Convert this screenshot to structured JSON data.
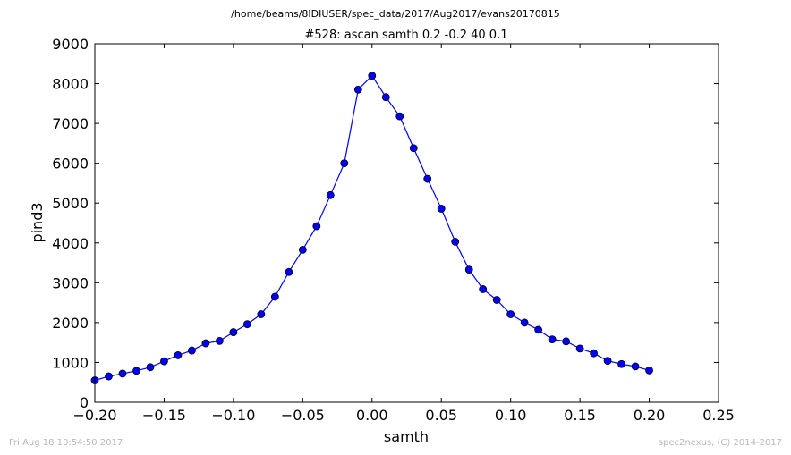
{
  "suptitle": "/home/beams/8IDIUSER/spec_data/2017/Aug2017/evans20170815",
  "footer_left": "Fri Aug 18 10:54:50 2017",
  "footer_right": "spec2nexus, (C) 2014-2017",
  "chart_data": {
    "type": "line",
    "title": "#528: ascan  samth 0.2 -0.2  40 0.1",
    "xlabel": "samth",
    "ylabel": "pind3",
    "xlim": [
      -0.2,
      0.25
    ],
    "ylim": [
      0,
      9000
    ],
    "xticks": [
      "−0.20",
      "−0.15",
      "−0.10",
      "−0.05",
      "0.00",
      "0.05",
      "0.10",
      "0.15",
      "0.20",
      "0.25"
    ],
    "yticks": [
      "0",
      "1000",
      "2000",
      "3000",
      "4000",
      "5000",
      "6000",
      "7000",
      "8000",
      "9000"
    ],
    "grid": false,
    "marker": "circle",
    "series": [
      {
        "color": "#0000ff",
        "x": [
          -0.2,
          -0.19,
          -0.18,
          -0.17,
          -0.16,
          -0.15,
          -0.14,
          -0.13,
          -0.12,
          -0.11,
          -0.1,
          -0.09,
          -0.08,
          -0.07,
          -0.06,
          -0.05,
          -0.04,
          -0.03,
          -0.02,
          -0.01,
          0.0,
          0.01,
          0.02,
          0.03,
          0.04,
          0.05,
          0.06,
          0.07,
          0.08,
          0.09,
          0.1,
          0.11,
          0.12,
          0.13,
          0.14,
          0.15,
          0.16,
          0.17,
          0.18,
          0.19,
          0.2
        ],
        "y": [
          550,
          650,
          720,
          790,
          880,
          1030,
          1180,
          1300,
          1480,
          1540,
          1760,
          1960,
          2210,
          2650,
          3270,
          3830,
          4420,
          5200,
          6000,
          7850,
          8200,
          7660,
          7180,
          6380,
          5610,
          4860,
          4030,
          3330,
          2840,
          2570,
          2210,
          2000,
          1820,
          1580,
          1530,
          1350,
          1230,
          1040,
          960,
          900,
          800
        ]
      }
    ]
  }
}
